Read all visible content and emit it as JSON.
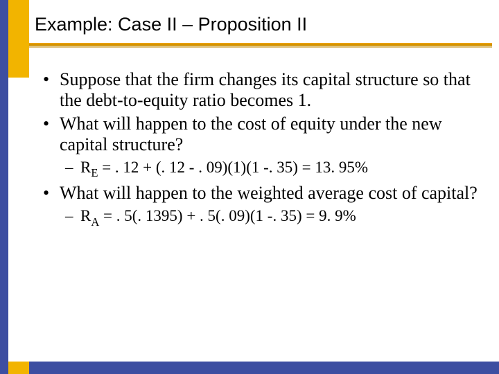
{
  "colors": {
    "blue": "#3d4ea1",
    "yellow": "#f2b400",
    "underline": "#e8a000",
    "text": "#000000",
    "background": "#ffffff"
  },
  "typography": {
    "title_font": "Arial",
    "title_size_pt": 27,
    "body_font": "Times New Roman",
    "body_size_l1_pt": 26,
    "body_size_l2_pt": 23
  },
  "title": "Example: Case II – Proposition II",
  "bullets": {
    "b1": "Suppose that the firm changes its capital structure so that the debt-to-equity ratio becomes 1.",
    "b2": "What will happen to the cost of equity under the new capital structure?",
    "b2sub_prefix": "R",
    "b2sub_sub": "E",
    "b2sub_rest": " = . 12 + (. 12 - . 09)(1)(1 -. 35) = 13. 95%",
    "b3": "What will happen to the weighted average cost of capital?",
    "b3sub_prefix": "R",
    "b3sub_sub": "A",
    "b3sub_rest": " = . 5(. 1395) + . 5(. 09)(1 -. 35) = 9. 9%"
  }
}
